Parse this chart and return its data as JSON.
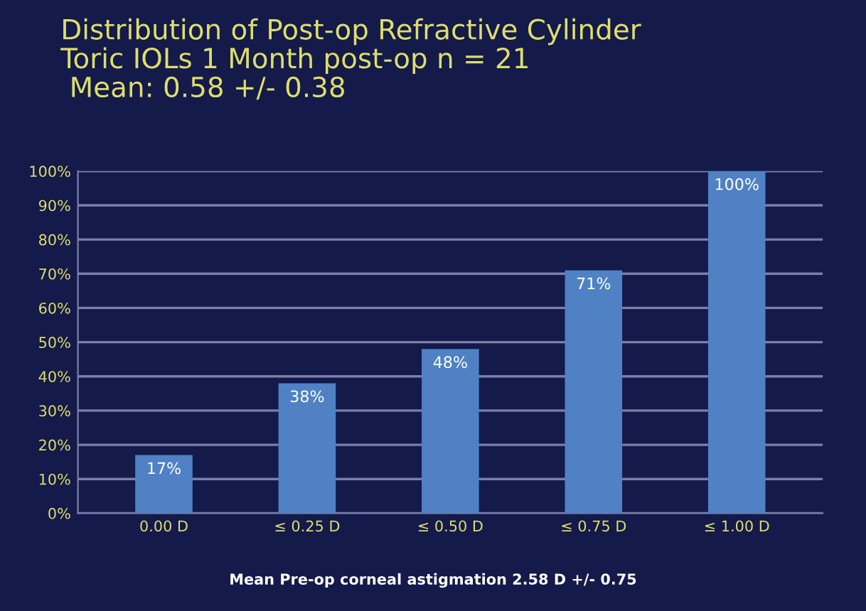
{
  "chart_data": {
    "type": "bar",
    "title": "Distribution of Post-op Refractive Cylinder\nToric IOLs 1 Month post-op n = 21\n Mean: 0.58 +/- 0.38",
    "categories": [
      "0.00 D",
      "≤ 0.25 D",
      "≤ 0.50 D",
      "≤ 0.75 D",
      "≤ 1.00 D"
    ],
    "values": [
      17,
      38,
      48,
      71,
      100
    ],
    "value_labels": [
      "17%",
      "38%",
      "48%",
      "71%",
      "100%"
    ],
    "color": "#4f81c4",
    "ylim": [
      0,
      100
    ],
    "yticks": [
      {
        "value": 0,
        "label": "0%"
      },
      {
        "value": 10,
        "label": "10%"
      },
      {
        "value": 20,
        "label": "20%"
      },
      {
        "value": 30,
        "label": "30%"
      },
      {
        "value": 40,
        "label": "40%"
      },
      {
        "value": 50,
        "label": "50%"
      },
      {
        "value": 60,
        "label": "60%"
      },
      {
        "value": 70,
        "label": "70%"
      },
      {
        "value": 80,
        "label": "80%"
      },
      {
        "value": 90,
        "label": "90%"
      },
      {
        "value": 100,
        "label": "100%"
      }
    ],
    "grid": "y",
    "annotations": [
      "Mean Pre-op corneal astigmation 2.58 D +/- 0.75"
    ]
  }
}
